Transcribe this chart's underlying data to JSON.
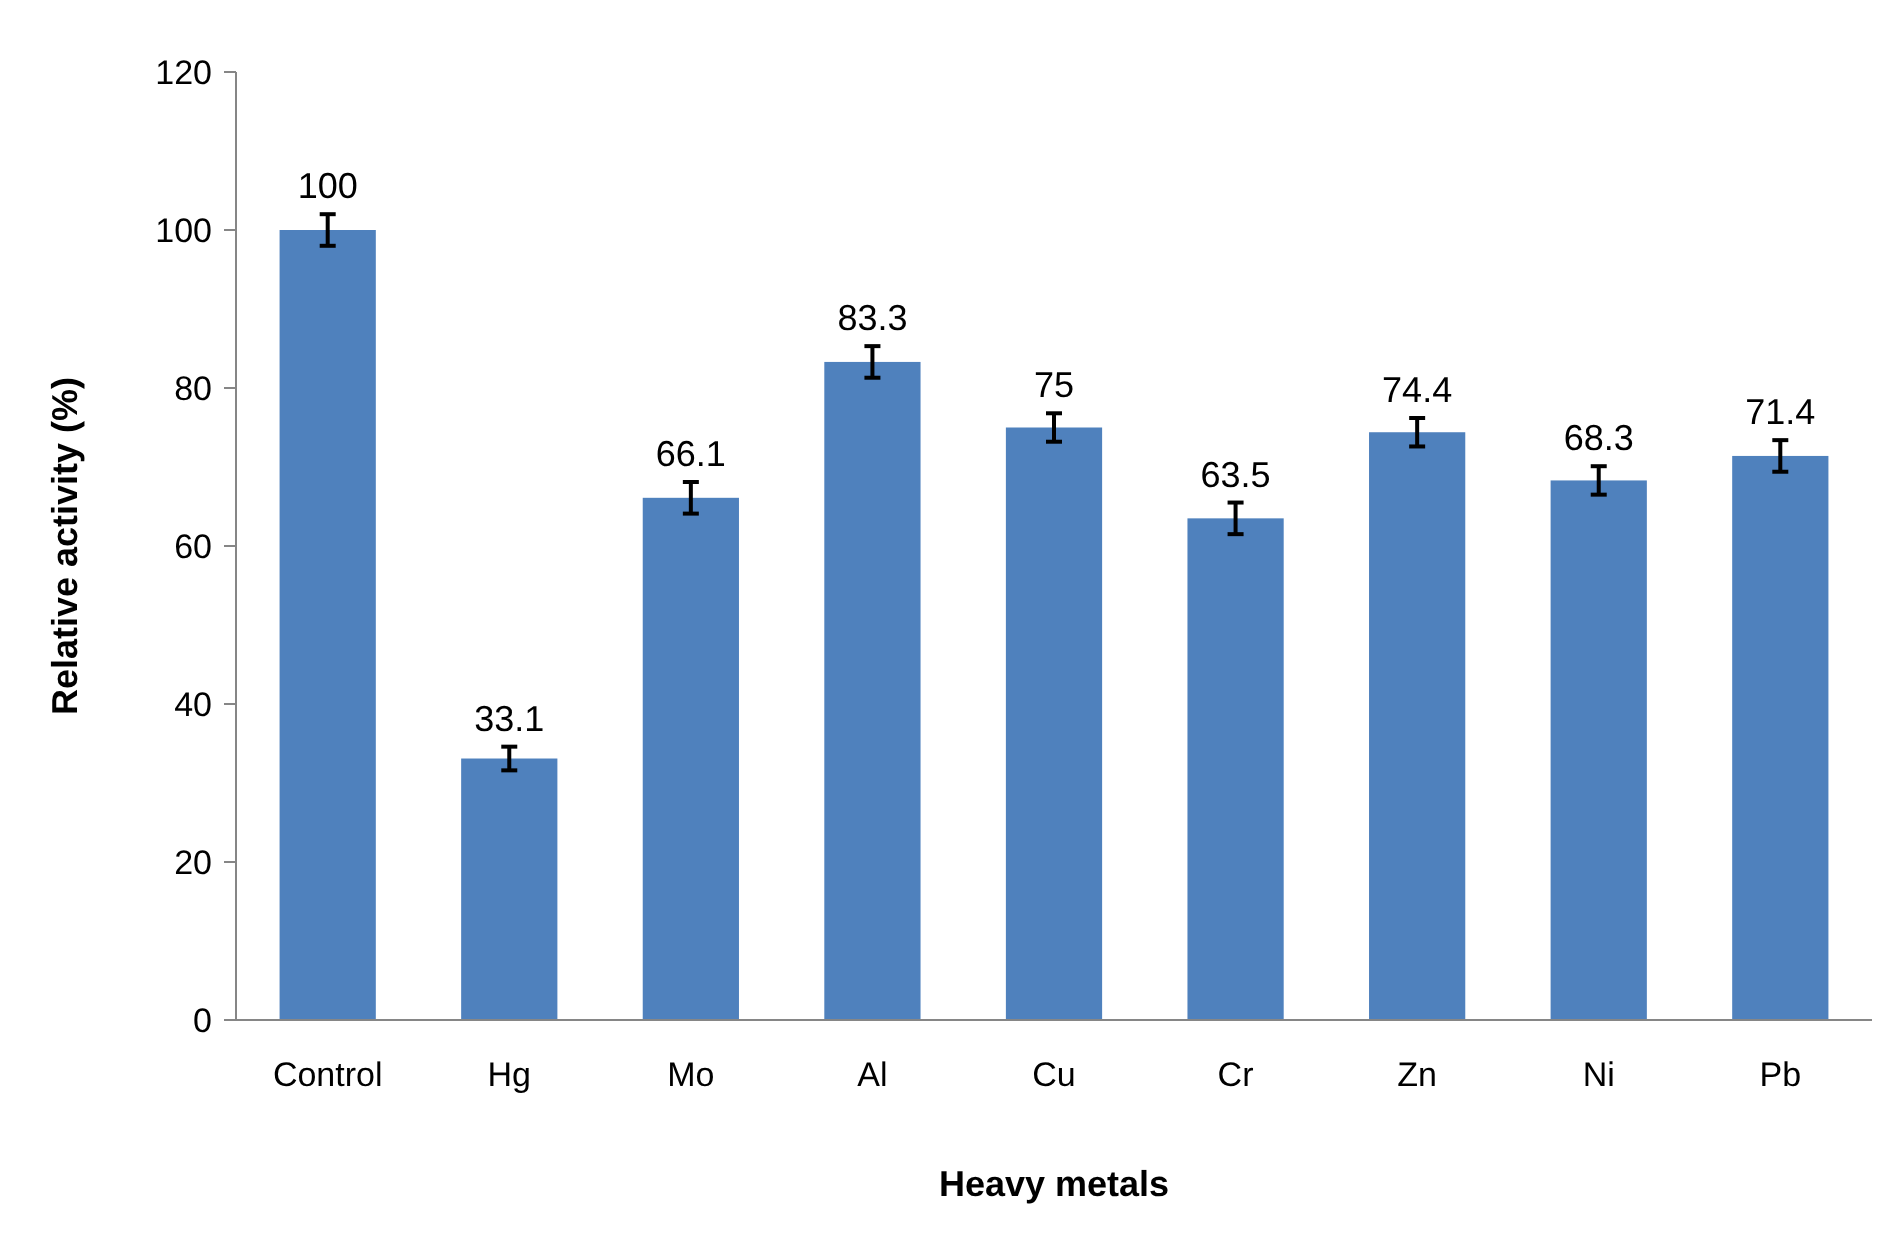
{
  "chart_data": {
    "type": "bar",
    "xlabel": "Heavy metals",
    "ylabel": "Relative activity (%)",
    "categories": [
      "Control",
      "Hg",
      "Mo",
      "Al",
      "Cu",
      "Cr",
      "Zn",
      "Ni",
      "Pb"
    ],
    "values": [
      100,
      33.1,
      66.1,
      83.3,
      75,
      63.5,
      74.4,
      68.3,
      71.4
    ],
    "errors": [
      2,
      1.5,
      2,
      2,
      1.8,
      2,
      1.8,
      1.8,
      2
    ],
    "color": "#4f81bd",
    "data_labels": true,
    "ylim": [
      0,
      120
    ],
    "yticks": [
      0,
      20,
      40,
      60,
      80,
      100,
      120
    ],
    "grid": false
  }
}
